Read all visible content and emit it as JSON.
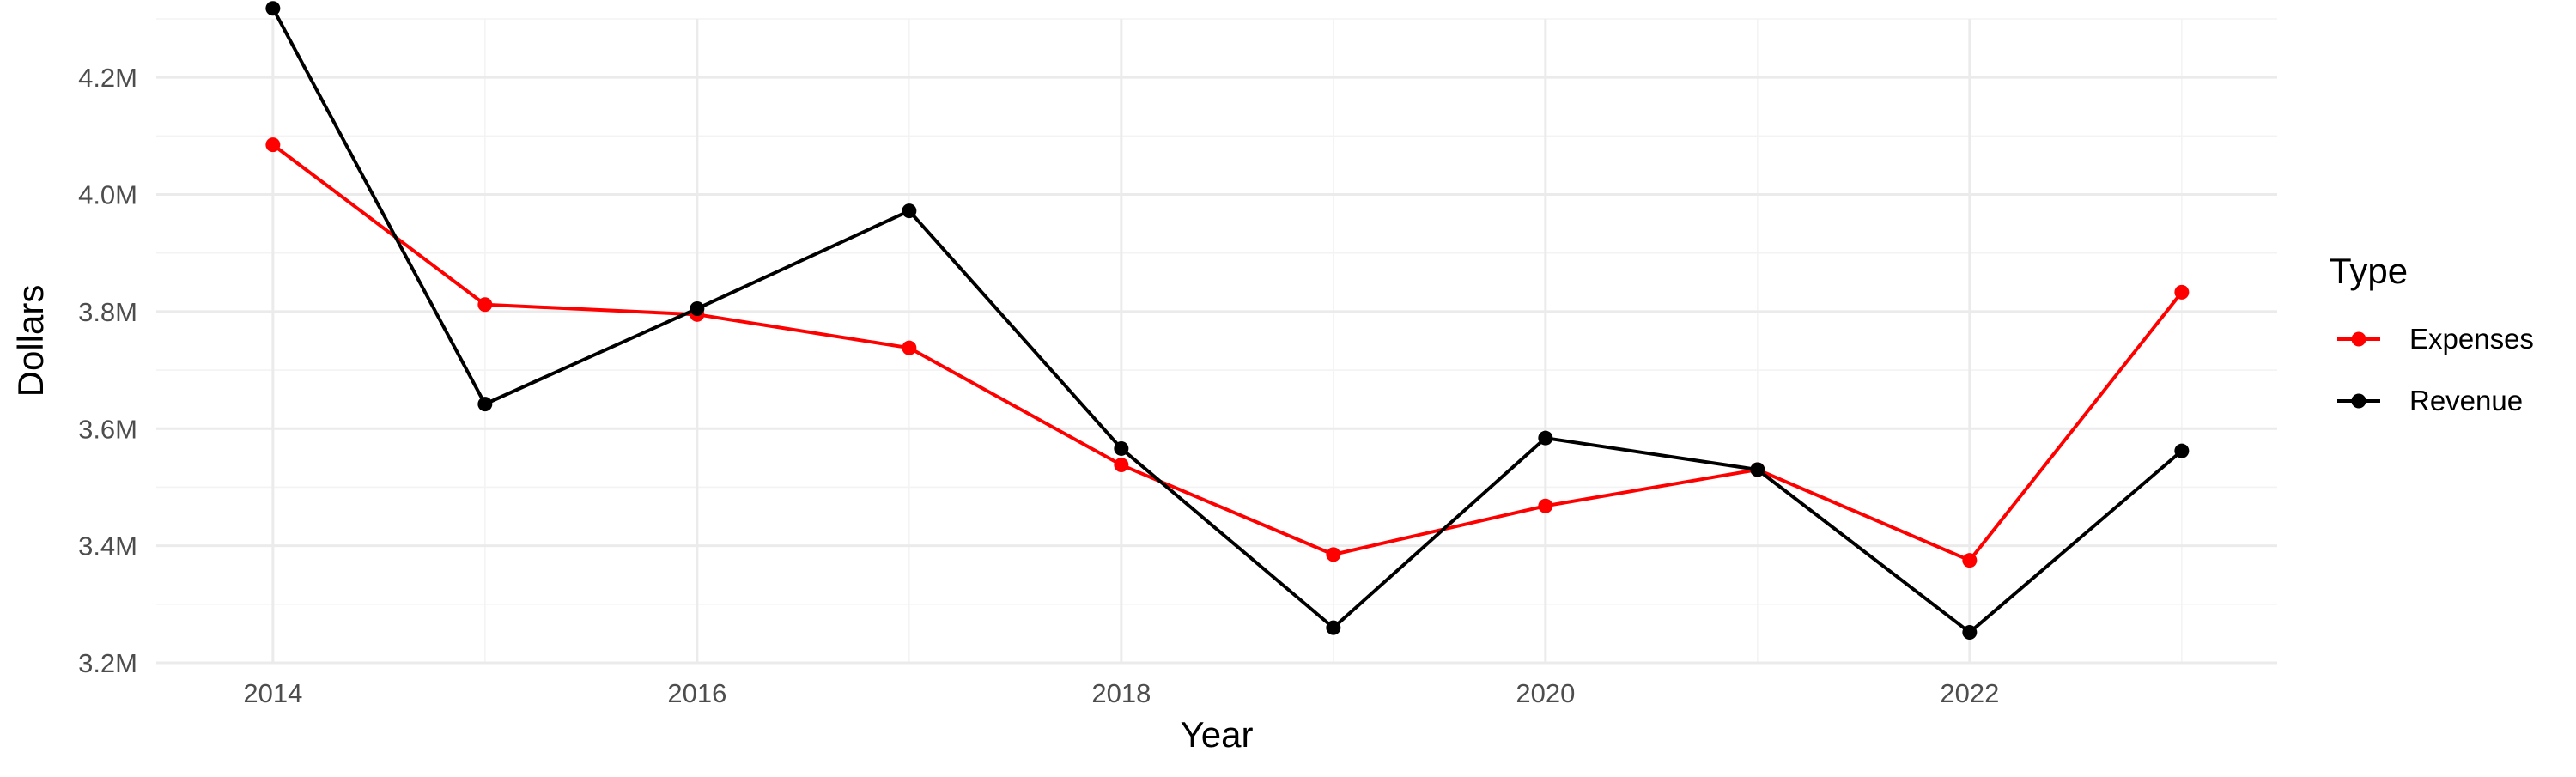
{
  "chart_data": {
    "type": "line",
    "title": "",
    "xlabel": "Year",
    "ylabel": "Dollars",
    "x": [
      2014,
      2015,
      2016,
      2017,
      2018,
      2019,
      2020,
      2021,
      2022,
      2023
    ],
    "xlim": [
      2013.45,
      2023.45
    ],
    "ylim": [
      3.2,
      4.3
    ],
    "x_ticks": [
      2014,
      2016,
      2018,
      2020,
      2022
    ],
    "x_tick_labels": [
      "2014",
      "2016",
      "2018",
      "2020",
      "2022"
    ],
    "y_ticks": [
      3.2,
      3.4,
      3.6,
      3.8,
      4.0,
      4.2
    ],
    "y_tick_labels": [
      "3.2M",
      "3.4M",
      "3.6M",
      "3.8M",
      "4.0M",
      "4.2M"
    ],
    "y_unit": "M",
    "grid": true,
    "legend": {
      "title": "Type",
      "placement": "right"
    },
    "series": [
      {
        "name": "Expenses",
        "color": "#ff0000",
        "values": [
          4.085,
          3.812,
          3.795,
          3.738,
          3.538,
          3.385,
          3.468,
          3.53,
          3.375,
          3.833
        ]
      },
      {
        "name": "Revenue",
        "color": "#000000",
        "values": [
          4.318,
          3.642,
          3.805,
          3.972,
          3.566,
          3.26,
          3.584,
          3.53,
          3.252,
          3.562
        ]
      }
    ]
  }
}
